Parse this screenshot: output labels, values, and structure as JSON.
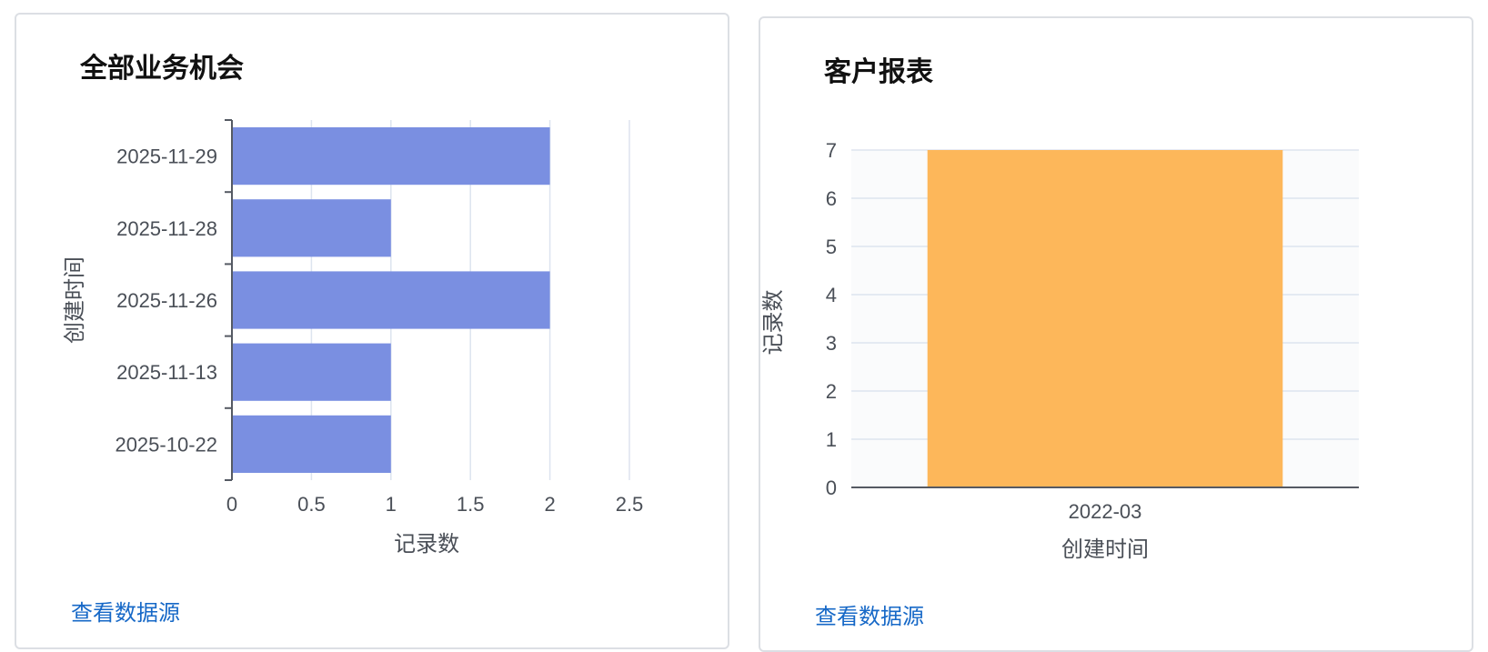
{
  "cards": [
    {
      "title": "全部业务机会",
      "link_label": "查看数据源"
    },
    {
      "title": "客户报表",
      "link_label": "查看数据源"
    }
  ],
  "colors": {
    "bar_left": "#7a8fe1",
    "bar_right": "#fdb75a",
    "grid": "#dde4ef",
    "link": "#1668c7"
  },
  "chart_data": [
    {
      "type": "bar",
      "orientation": "horizontal",
      "title": "全部业务机会",
      "categories": [
        "2025-11-29",
        "2025-11-28",
        "2025-11-26",
        "2025-11-13",
        "2025-10-22"
      ],
      "values": [
        2,
        1,
        2,
        1,
        1
      ],
      "xlabel": "记录数",
      "ylabel": "创建时间",
      "xlim": [
        0,
        2.5
      ],
      "xticks": [
        "0",
        "0.5",
        "1",
        "1.5",
        "2",
        "2.5"
      ],
      "grid": "vertical"
    },
    {
      "type": "bar",
      "orientation": "vertical",
      "title": "客户报表",
      "categories": [
        "2022-03"
      ],
      "values": [
        7
      ],
      "xlabel": "创建时间",
      "ylabel": "记录数",
      "ylim": [
        0,
        7
      ],
      "yticks": [
        "0",
        "1",
        "2",
        "3",
        "4",
        "5",
        "6",
        "7"
      ],
      "grid": "horizontal"
    }
  ]
}
